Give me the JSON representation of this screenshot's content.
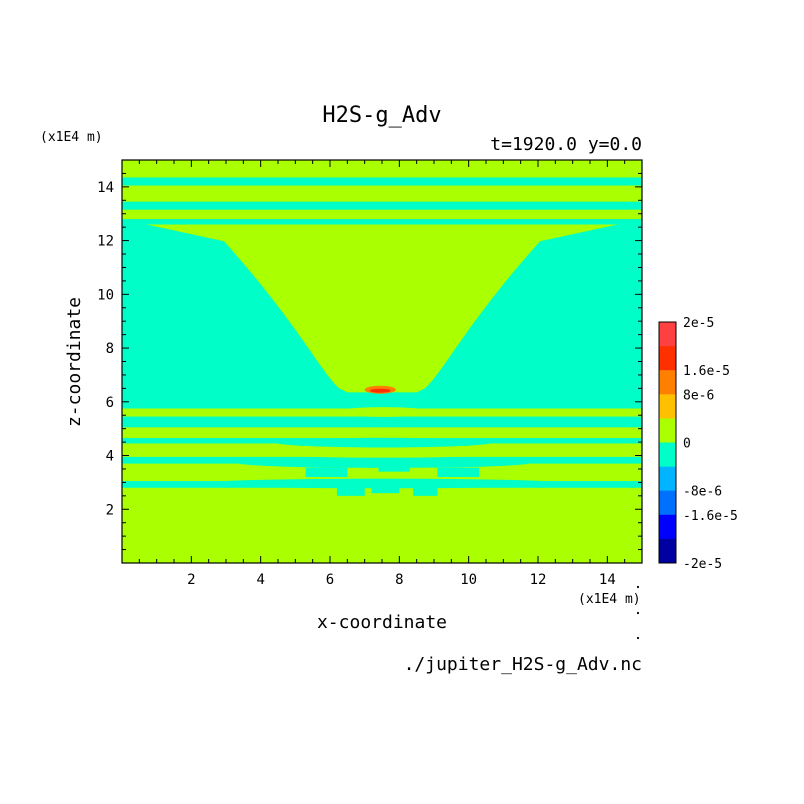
{
  "chart_data": {
    "type": "heatmap",
    "title": "H2S-g_Adv",
    "subtitle": "t=1920.0 y=0.0",
    "xlabel": "x-coordinate",
    "ylabel": "z-coordinate",
    "x_unit": "(x1E4 m)",
    "y_unit": "(x1E4 m)",
    "xlim": [
      0,
      15
    ],
    "ylim": [
      0,
      15
    ],
    "xticks": [
      "2",
      "4",
      "6",
      "8",
      "10",
      "12",
      "14"
    ],
    "yticks": [
      "2",
      "4",
      "6",
      "8",
      "10",
      "12",
      "14"
    ],
    "colorbar": {
      "labels": [
        "2e-5",
        "1.6e-5",
        "8e-6",
        "0",
        "-8e-6",
        "-1.6e-5",
        "-2e-5"
      ],
      "levels": [
        {
          "range": [
            1.6e-05,
            2e-05
          ],
          "color": "#ff4040"
        },
        {
          "range": [
            1.2e-05,
            1.6e-05
          ],
          "color": "#ff3000"
        },
        {
          "range": [
            8e-06,
            1.2e-05
          ],
          "color": "#ff8000"
        },
        {
          "range": [
            4e-06,
            8e-06
          ],
          "color": "#ffc000"
        },
        {
          "range": [
            0,
            4e-06
          ],
          "color": "#aaff00"
        },
        {
          "range": [
            -4e-06,
            0
          ],
          "color": "#00ffc8"
        },
        {
          "range": [
            -8e-06,
            -4e-06
          ],
          "color": "#00b4ff"
        },
        {
          "range": [
            -1.2e-05,
            -8e-06
          ],
          "color": "#0070ff"
        },
        {
          "range": [
            -1.6e-05,
            -1.2e-05
          ],
          "color": "#0000ff"
        },
        {
          "range": [
            -2e-05,
            -1.6e-05
          ],
          "color": "#0000a0"
        }
      ]
    },
    "zero_plus_color": "#aaff00",
    "zero_minus_color": "#00ffc8",
    "positive_max_color": "#ff8000",
    "stripes_z": [
      [
        14.05,
        14.35
      ],
      [
        13.15,
        13.45
      ],
      [
        12.6,
        12.8
      ],
      [
        5.05,
        5.45
      ],
      [
        4.45,
        4.65
      ],
      [
        3.7,
        3.95
      ],
      [
        2.8,
        3.05
      ]
    ],
    "lobe": {
      "z_bottom": 6.35,
      "z_top": 12.6,
      "x_center": 7.5,
      "half_width_bottom": 1.0,
      "half_width_top": 5.0
    },
    "positive_cap": {
      "x": 7.45,
      "z": 6.45
    },
    "source_file": "./jupiter_H2S-g_Adv.nc"
  }
}
